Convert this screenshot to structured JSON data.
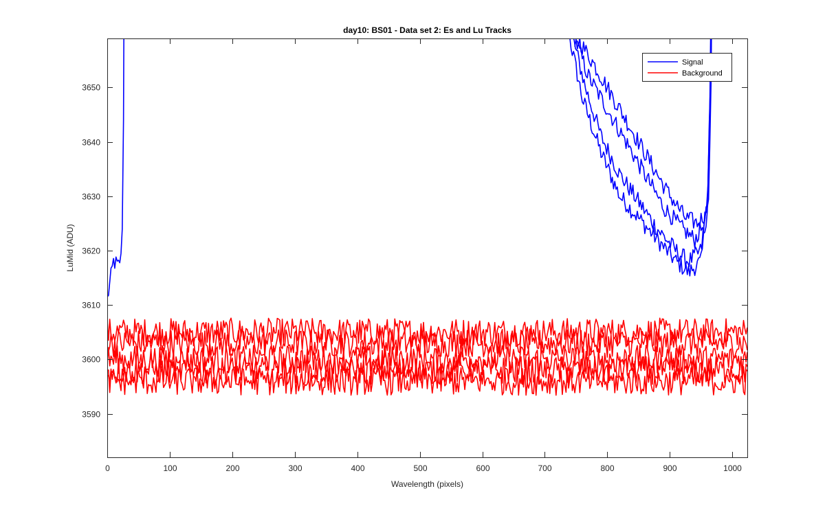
{
  "chart_data": {
    "type": "line",
    "title": "day10: BS01 - Data set 2: Es and Lu Tracks",
    "xlabel": "Wavelength (pixels)",
    "ylabel": "LuMid (ADU)",
    "xlim": [
      0,
      1024
    ],
    "ylim": [
      3582,
      3659
    ],
    "xticks": [
      0,
      100,
      200,
      300,
      400,
      500,
      600,
      700,
      800,
      900,
      1000
    ],
    "yticks": [
      3590,
      3600,
      3610,
      3620,
      3630,
      3640,
      3650
    ],
    "grid": false,
    "legend": {
      "placement": "top-right",
      "entries": [
        "Signal",
        "Background"
      ]
    },
    "colors": {
      "Signal": "#0000ff",
      "Background": "#ff0000"
    },
    "series": [
      {
        "name": "Signal",
        "group": "Signal",
        "x": [
          0,
          10,
          20,
          24,
          26,
          28
        ],
        "y": [
          3611,
          3618,
          3617,
          3623,
          3645,
          3700
        ]
      },
      {
        "group": "Signal",
        "x": [
          740,
          760,
          790,
          820,
          850,
          880,
          910,
          930,
          950,
          960,
          965,
          968
        ],
        "y": [
          3659,
          3648,
          3638,
          3630,
          3626,
          3622,
          3618,
          3616,
          3618,
          3628,
          3650,
          3700
        ]
      },
      {
        "group": "Signal",
        "x": [
          745,
          765,
          790,
          820,
          850,
          880,
          910,
          930,
          950,
          960,
          965,
          968
        ],
        "y": [
          3659,
          3650,
          3641,
          3634,
          3629,
          3624,
          3620,
          3618,
          3620,
          3629,
          3650,
          3700
        ]
      },
      {
        "group": "Signal",
        "x": [
          748,
          770,
          800,
          830,
          860,
          890,
          920,
          940,
          955,
          962,
          966,
          968
        ],
        "y": [
          3659,
          3652,
          3646,
          3640,
          3634,
          3628,
          3624,
          3622,
          3625,
          3630,
          3655,
          3700
        ]
      },
      {
        "group": "Signal",
        "x": [
          752,
          775,
          805,
          835,
          865,
          895,
          925,
          945,
          958,
          963,
          967,
          969
        ],
        "y": [
          3659,
          3655,
          3649,
          3643,
          3637,
          3631,
          3626,
          3625,
          3627,
          3632,
          3658,
          3700
        ]
      },
      {
        "name": "Background",
        "group": "Background",
        "x": [
          0,
          1024
        ],
        "y": [
          3605,
          3605
        ]
      },
      {
        "group": "Background",
        "x": [
          0,
          1024
        ],
        "y": [
          3603,
          3603
        ]
      },
      {
        "group": "Background",
        "x": [
          0,
          1024
        ],
        "y": [
          3600,
          3600
        ]
      },
      {
        "group": "Background",
        "x": [
          0,
          1024
        ],
        "y": [
          3598,
          3598
        ]
      },
      {
        "group": "Background",
        "x": [
          0,
          1024
        ],
        "y": [
          3596,
          3596
        ]
      }
    ]
  }
}
